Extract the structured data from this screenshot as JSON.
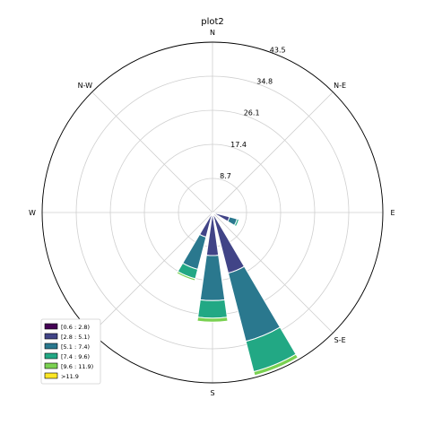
{
  "chart_data": {
    "type": "windrose",
    "title": "plot2",
    "directions": [
      "N",
      "N-E",
      "E",
      "S-E",
      "S",
      "N-W",
      "W"
    ],
    "radial_ticks": [
      "8.7",
      "17.4",
      "26.1",
      "34.8",
      "43.5"
    ],
    "radial_max": 43.5,
    "grid": true,
    "legend_position": "lower-left",
    "bins": [
      {
        "label": "[0.6 : 2.8)",
        "color": "#440154"
      },
      {
        "label": "[2.8 : 5.1)",
        "color": "#414487"
      },
      {
        "label": "[5.1 : 7.4)",
        "color": "#2a788e"
      },
      {
        "label": "[7.4 : 9.6)",
        "color": "#22a884"
      },
      {
        "label": "[9.6 : 11.9)",
        "color": "#7ad151"
      },
      {
        "label": ">11.9",
        "color": "#fde725"
      }
    ],
    "sectors": [
      {
        "direction_deg": 112.5,
        "cumulative": [
          0.5,
          4.5,
          6.5,
          7.0
        ]
      },
      {
        "direction_deg": 157.5,
        "cumulative": [
          0.5,
          16.0,
          34.0,
          42.0,
          43.0
        ]
      },
      {
        "direction_deg": 180,
        "cumulative": [
          0.5,
          11.0,
          22.5,
          27.0,
          28.0
        ]
      },
      {
        "direction_deg": 202.5,
        "cumulative": [
          0.5,
          6.5,
          15.0,
          17.5,
          18.0
        ]
      }
    ]
  }
}
